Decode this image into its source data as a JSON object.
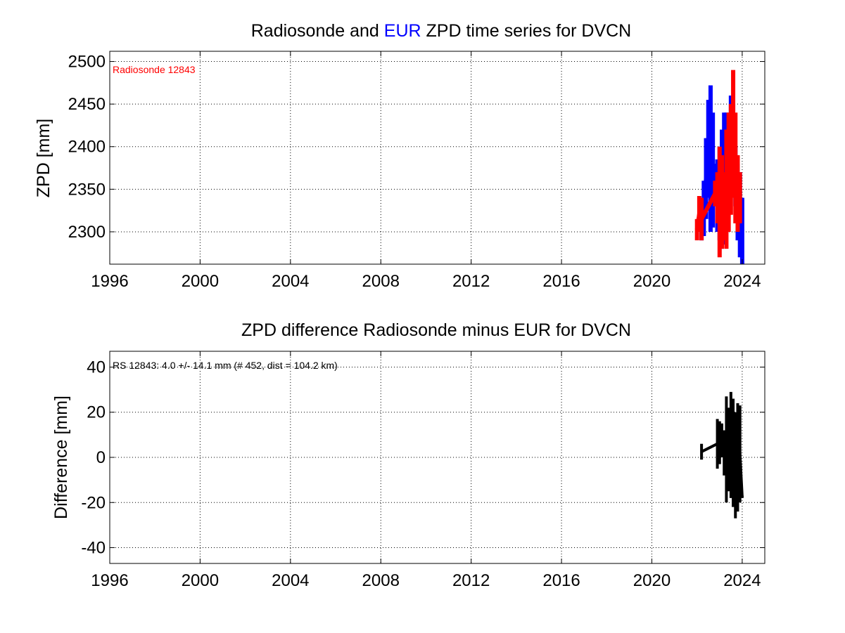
{
  "chart_data": [
    {
      "type": "line",
      "title_parts": [
        {
          "text": "Radiosonde and ",
          "color": "#000000"
        },
        {
          "text": "EUR",
          "color": "#0000ff"
        },
        {
          "text": " ZPD time series for DVCN",
          "color": "#000000"
        }
      ],
      "xlabel": "",
      "ylabel": "ZPD [mm]",
      "xlim": [
        1996,
        2025
      ],
      "ylim": [
        2262,
        2512
      ],
      "xticks": [
        "1996",
        "2000",
        "2004",
        "2008",
        "2012",
        "2016",
        "2020",
        "2024"
      ],
      "yticks": [
        "2300",
        "2350",
        "2400",
        "2450",
        "2500"
      ],
      "grid": true,
      "annotation": {
        "text": "Radiosonde 12843",
        "color": "#ff0000"
      },
      "series": [
        {
          "name": "EUR",
          "color": "#0000ff",
          "x": [
            2022.1,
            2022.2,
            2022.3,
            2022.4,
            2022.5,
            2022.6,
            2022.7,
            2022.8,
            2022.9,
            2023.0,
            2023.1,
            2023.2,
            2023.3,
            2023.4,
            2023.5,
            2023.6,
            2023.7,
            2023.8,
            2023.9,
            2024.0
          ],
          "low": [
            2310,
            2290,
            2295,
            2315,
            2340,
            2300,
            2305,
            2330,
            2300,
            2290,
            2280,
            2285,
            2300,
            2320,
            2340,
            2360,
            2330,
            2290,
            2270,
            2262
          ],
          "high": [
            2320,
            2330,
            2360,
            2410,
            2455,
            2472,
            2440,
            2380,
            2385,
            2400,
            2420,
            2440,
            2440,
            2420,
            2460,
            2450,
            2400,
            2380,
            2370,
            2340
          ]
        },
        {
          "name": "Radiosonde 12843",
          "color": "#ff0000",
          "x": [
            2022.0,
            2022.1,
            2022.2,
            2022.8,
            2022.9,
            2023.0,
            2023.1,
            2023.2,
            2023.3,
            2023.4,
            2023.5,
            2023.6,
            2023.7,
            2023.8,
            2023.9
          ],
          "low": [
            2290,
            2300,
            2290,
            2330,
            2310,
            2270,
            2280,
            2290,
            2280,
            2300,
            2320,
            2340,
            2310,
            2300,
            2310
          ],
          "high": [
            2315,
            2342,
            2340,
            2360,
            2370,
            2400,
            2390,
            2370,
            2420,
            2440,
            2450,
            2490,
            2440,
            2390,
            2370
          ]
        }
      ]
    },
    {
      "type": "line",
      "title_parts": [
        {
          "text": "ZPD difference Radiosonde minus EUR for DVCN",
          "color": "#000000"
        }
      ],
      "xlabel": "",
      "ylabel": "Difference [mm]",
      "xlim": [
        1996,
        2025
      ],
      "ylim": [
        -47,
        47
      ],
      "xticks": [
        "1996",
        "2000",
        "2004",
        "2008",
        "2012",
        "2016",
        "2020",
        "2024"
      ],
      "yticks": [
        "-40",
        "-20",
        "0",
        "20",
        "40"
      ],
      "grid": true,
      "annotation": {
        "text": "RS 12843: 4.0 +/- 14.1 mm (# 452, dist = 104.2 km)",
        "color": "#000000"
      },
      "series": [
        {
          "name": "Difference",
          "color": "#000000",
          "x": [
            2022.2,
            2022.9,
            2023.0,
            2023.1,
            2023.2,
            2023.3,
            2023.4,
            2023.5,
            2023.6,
            2023.7,
            2023.8,
            2023.9,
            2024.0
          ],
          "low": [
            -1,
            -5,
            -3,
            0,
            -8,
            -20,
            -15,
            -18,
            -22,
            -27,
            -24,
            -20,
            -18
          ],
          "high": [
            6,
            17,
            16,
            15,
            12,
            27,
            22,
            29,
            26,
            20,
            24,
            23,
            -17
          ]
        }
      ]
    }
  ]
}
